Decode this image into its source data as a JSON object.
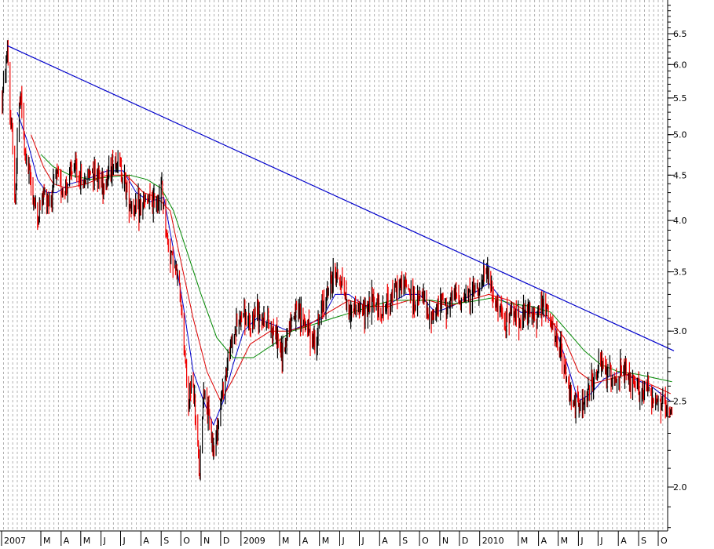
{
  "chart_data": {
    "type": "candlestick",
    "title": "",
    "xlabel": "",
    "ylabel": "",
    "y_scale": "log",
    "ylim": [
      1.7,
      7.0
    ],
    "y_ticks": [
      {
        "value": 6.5,
        "label": "6.5"
      },
      {
        "value": 6.0,
        "label": "6.0"
      },
      {
        "value": 5.5,
        "label": "5.5"
      },
      {
        "value": 5.0,
        "label": "5.0"
      },
      {
        "value": 4.5,
        "label": "4.5"
      },
      {
        "value": 4.0,
        "label": "4.0"
      },
      {
        "value": 3.5,
        "label": "3.5"
      },
      {
        "value": 3.0,
        "label": "3.0"
      },
      {
        "value": 2.5,
        "label": "2.5"
      },
      {
        "value": 2.0,
        "label": "2.0"
      }
    ],
    "x_ticks": [
      {
        "date": "2008-01",
        "label": "2007"
      },
      {
        "date": "2008-03",
        "label": "M"
      },
      {
        "date": "2008-04",
        "label": "A"
      },
      {
        "date": "2008-05",
        "label": "M"
      },
      {
        "date": "2008-06",
        "label": "J"
      },
      {
        "date": "2008-07",
        "label": "J"
      },
      {
        "date": "2008-08",
        "label": "A"
      },
      {
        "date": "2008-09",
        "label": "S"
      },
      {
        "date": "2008-10",
        "label": "O"
      },
      {
        "date": "2008-11",
        "label": "N"
      },
      {
        "date": "2008-12",
        "label": "D"
      },
      {
        "date": "2009-01",
        "label": "2009"
      },
      {
        "date": "2009-03",
        "label": "M"
      },
      {
        "date": "2009-04",
        "label": "A"
      },
      {
        "date": "2009-05",
        "label": "M"
      },
      {
        "date": "2009-06",
        "label": "J"
      },
      {
        "date": "2009-07",
        "label": "J"
      },
      {
        "date": "2009-08",
        "label": "A"
      },
      {
        "date": "2009-09",
        "label": "S"
      },
      {
        "date": "2009-10",
        "label": "O"
      },
      {
        "date": "2009-11",
        "label": "N"
      },
      {
        "date": "2009-12",
        "label": "D"
      },
      {
        "date": "2010-01",
        "label": "2010"
      },
      {
        "date": "2010-03",
        "label": "M"
      },
      {
        "date": "2010-04",
        "label": "A"
      },
      {
        "date": "2010-05",
        "label": "M"
      },
      {
        "date": "2010-06",
        "label": "J"
      },
      {
        "date": "2010-07",
        "label": "J"
      },
      {
        "date": "2010-08",
        "label": "A"
      },
      {
        "date": "2010-09",
        "label": "S"
      },
      {
        "date": "2010-10",
        "label": "O"
      }
    ],
    "grid": true,
    "legend": "none",
    "colors": {
      "trendline": "#0000cc",
      "ma_blue": "#0000cc",
      "ma_red": "#dd0000",
      "ma_green": "#008800",
      "bar_up": "#000000",
      "bar_down": "#ee0000",
      "grid": "#b0b0b0"
    },
    "trendline": {
      "start": {
        "date": "2008-01-10",
        "value": 6.3
      },
      "end": {
        "date": "2010-10-25",
        "value": 2.85
      }
    },
    "price_anchors": [
      [
        "2008-01-02",
        5.5
      ],
      [
        "2008-01-08",
        6.0
      ],
      [
        "2008-01-10",
        6.3
      ],
      [
        "2008-01-14",
        5.2
      ],
      [
        "2008-01-18",
        4.9
      ],
      [
        "2008-01-22",
        4.1
      ],
      [
        "2008-01-26",
        5.3
      ],
      [
        "2008-01-31",
        5.5
      ],
      [
        "2008-02-05",
        4.8
      ],
      [
        "2008-02-15",
        4.4
      ],
      [
        "2008-02-25",
        4.0
      ],
      [
        "2008-03-05",
        4.3
      ],
      [
        "2008-03-15",
        4.2
      ],
      [
        "2008-03-25",
        4.5
      ],
      [
        "2008-04-05",
        4.3
      ],
      [
        "2008-04-20",
        4.6
      ],
      [
        "2008-05-05",
        4.4
      ],
      [
        "2008-05-20",
        4.6
      ],
      [
        "2008-06-05",
        4.4
      ],
      [
        "2008-06-25",
        4.7
      ],
      [
        "2008-07-05",
        4.5
      ],
      [
        "2008-07-15",
        4.2
      ],
      [
        "2008-07-25",
        4.1
      ],
      [
        "2008-08-10",
        4.2
      ],
      [
        "2008-08-25",
        4.2
      ],
      [
        "2008-09-02",
        4.35
      ],
      [
        "2008-09-10",
        3.8
      ],
      [
        "2008-09-20",
        3.6
      ],
      [
        "2008-09-30",
        3.3
      ],
      [
        "2008-10-08",
        2.8
      ],
      [
        "2008-10-12",
        2.4
      ],
      [
        "2008-10-18",
        2.7
      ],
      [
        "2008-10-25",
        2.3
      ],
      [
        "2008-10-30",
        2.05
      ],
      [
        "2008-11-05",
        2.6
      ],
      [
        "2008-11-12",
        2.4
      ],
      [
        "2008-11-20",
        2.2
      ],
      [
        "2008-11-28",
        2.4
      ],
      [
        "2008-12-05",
        2.6
      ],
      [
        "2008-12-15",
        2.85
      ],
      [
        "2008-12-25",
        3.05
      ],
      [
        "2009-01-05",
        3.15
      ],
      [
        "2009-01-15",
        3.0
      ],
      [
        "2009-01-25",
        3.2
      ],
      [
        "2009-02-05",
        3.1
      ],
      [
        "2009-02-15",
        3.05
      ],
      [
        "2009-02-25",
        2.95
      ],
      [
        "2009-03-05",
        2.8
      ],
      [
        "2009-03-15",
        3.05
      ],
      [
        "2009-03-25",
        3.15
      ],
      [
        "2009-04-05",
        3.1
      ],
      [
        "2009-04-15",
        3.0
      ],
      [
        "2009-04-25",
        2.9
      ],
      [
        "2009-05-05",
        3.2
      ],
      [
        "2009-05-15",
        3.35
      ],
      [
        "2009-05-25",
        3.5
      ],
      [
        "2009-06-05",
        3.4
      ],
      [
        "2009-06-15",
        3.15
      ],
      [
        "2009-06-25",
        3.2
      ],
      [
        "2009-07-05",
        3.15
      ],
      [
        "2009-07-20",
        3.25
      ],
      [
        "2009-08-05",
        3.15
      ],
      [
        "2009-08-20",
        3.3
      ],
      [
        "2009-09-05",
        3.4
      ],
      [
        "2009-09-15",
        3.35
      ],
      [
        "2009-09-25",
        3.2
      ],
      [
        "2009-10-05",
        3.3
      ],
      [
        "2009-10-15",
        3.1
      ],
      [
        "2009-10-25",
        3.15
      ],
      [
        "2009-11-05",
        3.25
      ],
      [
        "2009-11-15",
        3.2
      ],
      [
        "2009-11-25",
        3.3
      ],
      [
        "2009-12-05",
        3.25
      ],
      [
        "2009-12-15",
        3.3
      ],
      [
        "2009-12-25",
        3.35
      ],
      [
        "2010-01-05",
        3.4
      ],
      [
        "2010-01-12",
        3.5
      ],
      [
        "2010-01-20",
        3.3
      ],
      [
        "2010-01-30",
        3.15
      ],
      [
        "2010-02-10",
        3.1
      ],
      [
        "2010-02-20",
        3.15
      ],
      [
        "2010-03-05",
        3.1
      ],
      [
        "2010-03-15",
        3.15
      ],
      [
        "2010-03-25",
        3.1
      ],
      [
        "2010-04-05",
        3.2
      ],
      [
        "2010-04-12",
        3.2
      ],
      [
        "2010-04-25",
        2.95
      ],
      [
        "2010-05-05",
        2.85
      ],
      [
        "2010-05-15",
        2.6
      ],
      [
        "2010-05-25",
        2.5
      ],
      [
        "2010-06-05",
        2.45
      ],
      [
        "2010-06-15",
        2.55
      ],
      [
        "2010-06-25",
        2.65
      ],
      [
        "2010-07-05",
        2.75
      ],
      [
        "2010-07-15",
        2.7
      ],
      [
        "2010-07-25",
        2.65
      ],
      [
        "2010-08-05",
        2.7
      ],
      [
        "2010-08-15",
        2.65
      ],
      [
        "2010-08-25",
        2.6
      ],
      [
        "2010-09-05",
        2.55
      ],
      [
        "2010-09-15",
        2.6
      ],
      [
        "2010-09-25",
        2.5
      ],
      [
        "2010-10-05",
        2.5
      ],
      [
        "2010-10-15",
        2.42
      ],
      [
        "2010-10-22",
        2.4
      ]
    ],
    "moving_averages": [
      {
        "color": "ma_blue",
        "points": [
          [
            "2008-01-25",
            5.3
          ],
          [
            "2008-02-10",
            4.9
          ],
          [
            "2008-02-25",
            4.45
          ],
          [
            "2008-03-10",
            4.3
          ],
          [
            "2008-03-25",
            4.3
          ],
          [
            "2008-04-15",
            4.4
          ],
          [
            "2008-05-10",
            4.45
          ],
          [
            "2008-06-10",
            4.55
          ],
          [
            "2008-07-05",
            4.55
          ],
          [
            "2008-07-25",
            4.3
          ],
          [
            "2008-08-15",
            4.2
          ],
          [
            "2008-09-05",
            4.25
          ],
          [
            "2008-09-20",
            3.7
          ],
          [
            "2008-10-05",
            3.2
          ],
          [
            "2008-10-20",
            2.7
          ],
          [
            "2008-11-05",
            2.5
          ],
          [
            "2008-11-20",
            2.35
          ],
          [
            "2008-12-05",
            2.5
          ],
          [
            "2008-12-20",
            2.75
          ],
          [
            "2009-01-05",
            3.0
          ],
          [
            "2009-01-25",
            3.1
          ],
          [
            "2009-02-20",
            3.05
          ],
          [
            "2009-03-15",
            3.0
          ],
          [
            "2009-04-10",
            3.05
          ],
          [
            "2009-05-05",
            3.1
          ],
          [
            "2009-05-25",
            3.3
          ],
          [
            "2009-06-15",
            3.3
          ],
          [
            "2009-07-10",
            3.2
          ],
          [
            "2009-08-10",
            3.2
          ],
          [
            "2009-09-10",
            3.3
          ],
          [
            "2009-10-01",
            3.3
          ],
          [
            "2009-10-25",
            3.15
          ],
          [
            "2009-11-20",
            3.2
          ],
          [
            "2009-12-20",
            3.3
          ],
          [
            "2010-01-15",
            3.4
          ],
          [
            "2010-02-05",
            3.25
          ],
          [
            "2010-03-05",
            3.15
          ],
          [
            "2010-04-05",
            3.15
          ],
          [
            "2010-04-25",
            3.05
          ],
          [
            "2010-05-15",
            2.75
          ],
          [
            "2010-06-01",
            2.5
          ],
          [
            "2010-06-20",
            2.55
          ],
          [
            "2010-07-10",
            2.65
          ],
          [
            "2010-08-05",
            2.7
          ],
          [
            "2010-08-25",
            2.65
          ],
          [
            "2010-09-20",
            2.6
          ],
          [
            "2010-10-20",
            2.5
          ]
        ]
      },
      {
        "color": "ma_red",
        "points": [
          [
            "2008-02-15",
            5.0
          ],
          [
            "2008-03-05",
            4.6
          ],
          [
            "2008-03-20",
            4.4
          ],
          [
            "2008-04-10",
            4.35
          ],
          [
            "2008-05-10",
            4.4
          ],
          [
            "2008-06-10",
            4.5
          ],
          [
            "2008-07-10",
            4.5
          ],
          [
            "2008-08-05",
            4.3
          ],
          [
            "2008-08-25",
            4.25
          ],
          [
            "2008-09-15",
            4.1
          ],
          [
            "2008-10-01",
            3.6
          ],
          [
            "2008-10-20",
            3.1
          ],
          [
            "2008-11-10",
            2.7
          ],
          [
            "2008-12-01",
            2.5
          ],
          [
            "2008-12-20",
            2.65
          ],
          [
            "2009-01-15",
            2.9
          ],
          [
            "2009-02-15",
            3.0
          ],
          [
            "2009-03-15",
            3.0
          ],
          [
            "2009-04-15",
            3.05
          ],
          [
            "2009-05-15",
            3.15
          ],
          [
            "2009-06-15",
            3.25
          ],
          [
            "2009-07-15",
            3.2
          ],
          [
            "2009-08-15",
            3.2
          ],
          [
            "2009-09-15",
            3.25
          ],
          [
            "2009-10-15",
            3.25
          ],
          [
            "2009-11-15",
            3.2
          ],
          [
            "2009-12-15",
            3.25
          ],
          [
            "2010-01-15",
            3.3
          ],
          [
            "2010-02-15",
            3.25
          ],
          [
            "2010-03-15",
            3.15
          ],
          [
            "2010-04-15",
            3.12
          ],
          [
            "2010-05-10",
            2.95
          ],
          [
            "2010-06-01",
            2.7
          ],
          [
            "2010-06-25",
            2.62
          ],
          [
            "2010-07-20",
            2.65
          ],
          [
            "2010-08-15",
            2.68
          ],
          [
            "2010-09-15",
            2.62
          ],
          [
            "2010-10-20",
            2.55
          ]
        ]
      },
      {
        "color": "ma_green",
        "points": [
          [
            "2008-03-01",
            4.75
          ],
          [
            "2008-03-20",
            4.6
          ],
          [
            "2008-04-15",
            4.5
          ],
          [
            "2008-05-15",
            4.45
          ],
          [
            "2008-06-15",
            4.48
          ],
          [
            "2008-07-15",
            4.5
          ],
          [
            "2008-08-10",
            4.45
          ],
          [
            "2008-09-01",
            4.35
          ],
          [
            "2008-09-20",
            4.1
          ],
          [
            "2008-10-10",
            3.7
          ],
          [
            "2008-11-01",
            3.3
          ],
          [
            "2008-11-25",
            2.95
          ],
          [
            "2008-12-20",
            2.8
          ],
          [
            "2009-01-20",
            2.8
          ],
          [
            "2009-02-20",
            2.9
          ],
          [
            "2009-03-20",
            3.0
          ],
          [
            "2009-04-20",
            3.05
          ],
          [
            "2009-05-20",
            3.1
          ],
          [
            "2009-06-20",
            3.15
          ],
          [
            "2009-07-20",
            3.2
          ],
          [
            "2009-08-20",
            3.25
          ],
          [
            "2009-09-20",
            3.25
          ],
          [
            "2009-10-20",
            3.25
          ],
          [
            "2009-11-20",
            3.22
          ],
          [
            "2009-12-20",
            3.24
          ],
          [
            "2010-01-20",
            3.27
          ],
          [
            "2010-02-20",
            3.22
          ],
          [
            "2010-03-20",
            3.2
          ],
          [
            "2010-04-20",
            3.15
          ],
          [
            "2010-05-15",
            3.0
          ],
          [
            "2010-06-10",
            2.85
          ],
          [
            "2010-07-05",
            2.75
          ],
          [
            "2010-08-01",
            2.7
          ],
          [
            "2010-09-01",
            2.68
          ],
          [
            "2010-10-01",
            2.65
          ],
          [
            "2010-10-22",
            2.63
          ]
        ]
      }
    ]
  }
}
